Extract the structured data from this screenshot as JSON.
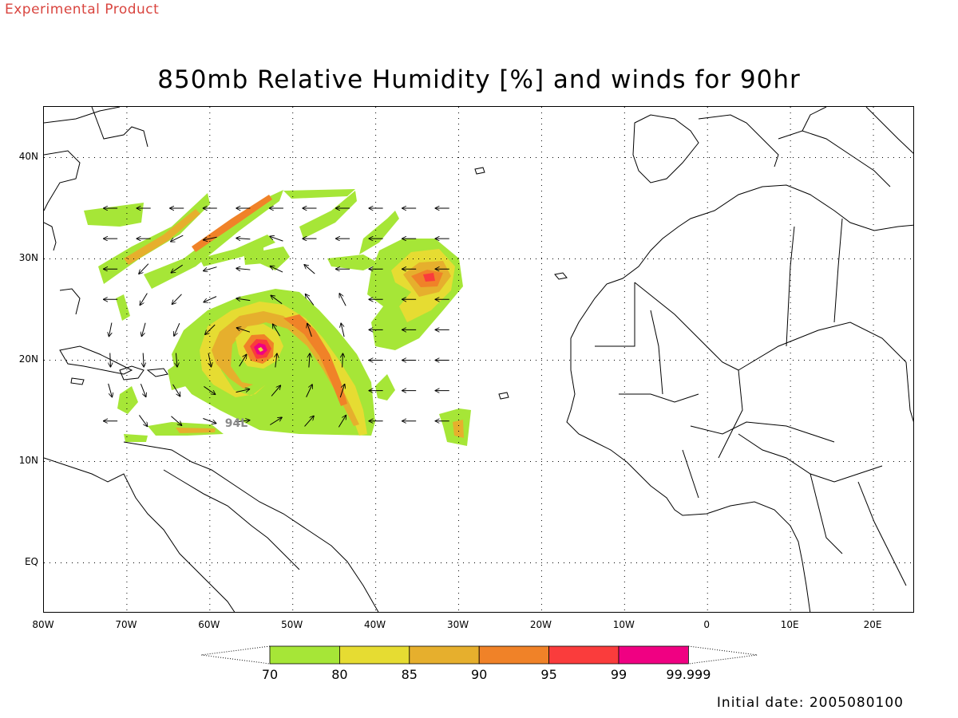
{
  "header": {
    "experimental_label": "Experimental Product",
    "title": "850mb Relative Humidity [%] and winds for 90hr"
  },
  "map": {
    "projection": "lat-lon",
    "lon_range": [
      -80,
      25
    ],
    "lat_range": [
      -5,
      45
    ],
    "gridlines": "dotted",
    "y_tick_labels": [
      {
        "lat": 40,
        "label": "40N"
      },
      {
        "lat": 30,
        "label": "30N"
      },
      {
        "lat": 20,
        "label": "20N"
      },
      {
        "lat": 10,
        "label": "10N"
      },
      {
        "lat": 0,
        "label": "EQ"
      }
    ],
    "x_tick_labels": [
      {
        "lon": -80,
        "label": "80W"
      },
      {
        "lon": -70,
        "label": "70W"
      },
      {
        "lon": -60,
        "label": "60W"
      },
      {
        "lon": -50,
        "label": "50W"
      },
      {
        "lon": -40,
        "label": "40W"
      },
      {
        "lon": -30,
        "label": "30W"
      },
      {
        "lon": -20,
        "label": "20W"
      },
      {
        "lon": -10,
        "label": "10W"
      },
      {
        "lon": 0,
        "label": "0"
      },
      {
        "lon": 10,
        "label": "10E"
      },
      {
        "lon": 20,
        "label": "20E"
      }
    ],
    "storm_label": "94L",
    "storm_lon": -57,
    "storm_lat": 20.5,
    "coastline_color": "#000000",
    "land_fill": "#ffffff"
  },
  "colorbar": {
    "levels": [
      "70",
      "80",
      "85",
      "90",
      "95",
      "99",
      "99.999"
    ],
    "colors": [
      "#a6e637",
      "#e6dc32",
      "#e6af2d",
      "#f08228",
      "#fa3c3c",
      "#f00082"
    ]
  },
  "footer": {
    "initial_date": "Initial date: 2005080100"
  }
}
